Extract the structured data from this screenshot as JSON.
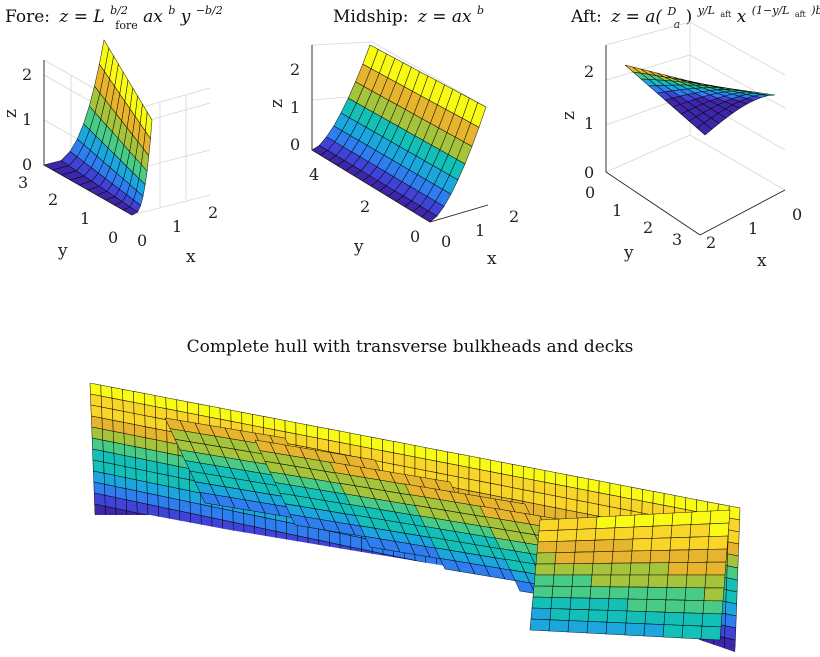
{
  "colormap": [
    "#3e26a8",
    "#4044d6",
    "#2e7ef0",
    "#1ba7dd",
    "#14bfb7",
    "#48cb86",
    "#a6c33c",
    "#e7b42d",
    "#f9d527",
    "#f9fb15"
  ],
  "panels": {
    "fore": {
      "title_prefix": "Fore:",
      "title_eq": "z = L",
      "title_sub": "fore",
      "title_sup": "b/2",
      "title_rest": "ax",
      "title_sup2": "b",
      "title_rest2": "y",
      "title_sup3": "−b/2",
      "z_ticks": [
        "0",
        "1",
        "2"
      ],
      "y_ticks": [
        "3",
        "2",
        "1",
        "0"
      ],
      "x_ticks": [
        "0",
        "1",
        "2"
      ],
      "z_label": "z",
      "y_label": "y",
      "x_label": "x"
    },
    "mid": {
      "title_prefix": "Midship:",
      "title_eq": "z = ax",
      "title_sup": "b",
      "z_ticks": [
        "0",
        "1",
        "2"
      ],
      "y_ticks": [
        "4",
        "2",
        "0"
      ],
      "x_ticks": [
        "0",
        "1",
        "2"
      ],
      "z_label": "z",
      "y_label": "y",
      "x_label": "x"
    },
    "aft": {
      "title_prefix": "Aft:",
      "title_eq": "z = a(",
      "title_frac_num": "D",
      "title_frac_den": "a",
      "title_close": ")",
      "title_sup": "y/L",
      "title_sup_sub": "aft",
      "title_x": "x",
      "title_sup2": "(1−y/L",
      "title_sup2_sub": "aft",
      "title_sup2_end": ")b",
      "z_ticks": [
        "0",
        "1",
        "2"
      ],
      "y_ticks": [
        "0",
        "1",
        "2",
        "3"
      ],
      "x_ticks": [
        "2",
        "1",
        "0"
      ],
      "z_label": "z",
      "y_label": "y",
      "x_label": "x"
    },
    "hull": {
      "title": "Complete hull with transverse bulkheads and decks"
    }
  }
}
